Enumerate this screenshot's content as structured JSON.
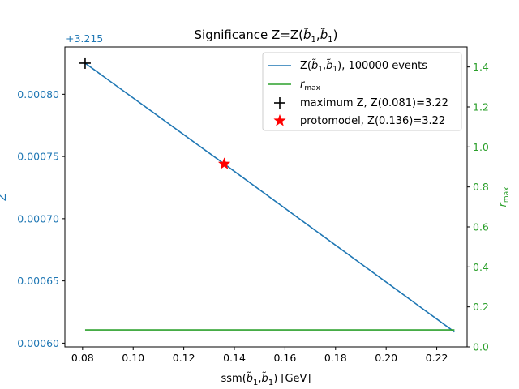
{
  "chart_data": {
    "type": "line",
    "title": "Significance Z=Z(b̃1,b̃1)",
    "xlabel": "ssm(b̃1,b̃1) [GeV]",
    "ylabel_left": "Z",
    "ylabel_right": "r_max",
    "y_offset_label": "+3.215",
    "xlim": [
      0.073,
      0.232
    ],
    "ylim_left": [
      0.000597,
      0.000838
    ],
    "ylim_right": [
      0.0,
      1.5
    ],
    "x_ticks": [
      0.08,
      0.1,
      0.12,
      0.14,
      0.16,
      0.18,
      0.2,
      0.22
    ],
    "x_tick_labels": [
      "0.08",
      "0.10",
      "0.12",
      "0.14",
      "0.16",
      "0.18",
      "0.20",
      "0.22"
    ],
    "y_left_ticks": [
      0.0006,
      0.00065,
      0.0007,
      0.00075,
      0.0008
    ],
    "y_left_tick_labels": [
      "0.00060",
      "0.00065",
      "0.00070",
      "0.00075",
      "0.00080"
    ],
    "y_right_ticks": [
      0.0,
      0.2,
      0.4,
      0.6,
      0.8,
      1.0,
      1.2,
      1.4
    ],
    "y_right_tick_labels": [
      "0.0",
      "0.2",
      "0.4",
      "0.6",
      "0.8",
      "1.0",
      "1.2",
      "1.4"
    ],
    "series": [
      {
        "name": "Z(b̃1,b̃1), 100000 events",
        "axis": "left",
        "color": "#1f77b4",
        "x": [
          0.081,
          0.136,
          0.227
        ],
        "y": [
          0.000825,
          0.000744,
          0.000609
        ]
      },
      {
        "name": "r_max",
        "axis": "right",
        "color": "#2ca02c",
        "x": [
          0.081,
          0.227
        ],
        "y": [
          0.085,
          0.085
        ]
      }
    ],
    "markers": [
      {
        "name": "maximum Z, Z(0.081)=3.22",
        "symbol": "plus",
        "color": "#000000",
        "x": 0.081,
        "y": 0.000825
      },
      {
        "name": "protomodel, Z(0.136)=3.22",
        "symbol": "star",
        "color": "#ff0000",
        "x": 0.136,
        "y": 0.000744
      }
    ],
    "legend": {
      "placement": "top-right",
      "entries": [
        "Z(b̃1,b̃1), 100000 events",
        "r_max",
        "maximum Z, Z(0.081)=3.22",
        "protomodel, Z(0.136)=3.22"
      ]
    },
    "grid": false
  }
}
